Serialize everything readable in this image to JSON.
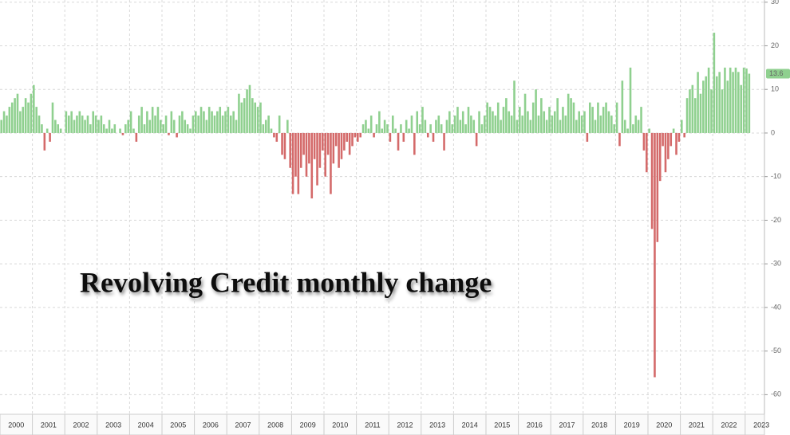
{
  "chart_data": {
    "type": "bar",
    "title": "Revolving Credit monthly change",
    "categories": [
      "2000",
      null,
      null,
      null,
      null,
      null,
      null,
      null,
      null,
      null,
      null,
      null,
      "2001",
      null,
      null,
      null,
      null,
      null,
      null,
      null,
      null,
      null,
      null,
      null,
      "2002",
      null,
      null,
      null,
      null,
      null,
      null,
      null,
      null,
      null,
      null,
      null,
      "2003",
      null,
      null,
      null,
      null,
      null,
      null,
      null,
      null,
      null,
      null,
      null,
      "2004",
      null,
      null,
      null,
      null,
      null,
      null,
      null,
      null,
      null,
      null,
      null,
      "2005",
      null,
      null,
      null,
      null,
      null,
      null,
      null,
      null,
      null,
      null,
      null,
      "2006",
      null,
      null,
      null,
      null,
      null,
      null,
      null,
      null,
      null,
      null,
      null,
      "2007",
      null,
      null,
      null,
      null,
      null,
      null,
      null,
      null,
      null,
      null,
      null,
      "2008",
      null,
      null,
      null,
      null,
      null,
      null,
      null,
      null,
      null,
      null,
      null,
      "2009",
      null,
      null,
      null,
      null,
      null,
      null,
      null,
      null,
      null,
      null,
      null,
      "2010",
      null,
      null,
      null,
      null,
      null,
      null,
      null,
      null,
      null,
      null,
      null,
      "2011",
      null,
      null,
      null,
      null,
      null,
      null,
      null,
      null,
      null,
      null,
      null,
      "2012",
      null,
      null,
      null,
      null,
      null,
      null,
      null,
      null,
      null,
      null,
      null,
      "2013",
      null,
      null,
      null,
      null,
      null,
      null,
      null,
      null,
      null,
      null,
      null,
      "2014",
      null,
      null,
      null,
      null,
      null,
      null,
      null,
      null,
      null,
      null,
      null,
      "2015",
      null,
      null,
      null,
      null,
      null,
      null,
      null,
      null,
      null,
      null,
      null,
      "2016",
      null,
      null,
      null,
      null,
      null,
      null,
      null,
      null,
      null,
      null,
      null,
      "2017",
      null,
      null,
      null,
      null,
      null,
      null,
      null,
      null,
      null,
      null,
      null,
      "2018",
      null,
      null,
      null,
      null,
      null,
      null,
      null,
      null,
      null,
      null,
      null,
      "2019",
      null,
      null,
      null,
      null,
      null,
      null,
      null,
      null,
      null,
      null,
      null,
      "2020",
      null,
      null,
      null,
      null,
      null,
      null,
      null,
      null,
      null,
      null,
      null,
      "2021",
      null,
      null,
      null,
      null,
      null,
      null,
      null,
      null,
      null,
      null,
      null,
      "2022",
      null,
      null,
      null,
      null,
      null,
      null,
      null,
      null,
      null,
      null,
      null,
      "2023",
      null
    ],
    "values": [
      3,
      5,
      4,
      6,
      7,
      8,
      9,
      5,
      6,
      8,
      7,
      9,
      11,
      6,
      4,
      2,
      -4,
      1,
      -2,
      7,
      3,
      2,
      1,
      0,
      5,
      4,
      5,
      3,
      4,
      5,
      4,
      3,
      4,
      2,
      5,
      4,
      3,
      4,
      2,
      1,
      3,
      1,
      2,
      0,
      1,
      -0.5,
      2,
      3,
      5,
      1,
      -2,
      4,
      6,
      2,
      5,
      3,
      6,
      4,
      6,
      3,
      2,
      4,
      -0.5,
      5,
      3,
      -1,
      4,
      5,
      3,
      2,
      1,
      4,
      5,
      4,
      6,
      5,
      3,
      6,
      5,
      4,
      5,
      6,
      4,
      5,
      6,
      4,
      5,
      3,
      9,
      7,
      8,
      10,
      11,
      8,
      7,
      6,
      7,
      2,
      3,
      4,
      1,
      -1,
      -2,
      4,
      -5,
      -6,
      3,
      -8,
      -14,
      -10,
      -14,
      -8,
      -5,
      -10,
      -7,
      -15,
      -6,
      -12,
      -8,
      -4,
      -10,
      -5,
      -14,
      -7,
      -3,
      -8,
      -6,
      -4,
      -2,
      -5,
      -3,
      -1,
      -2,
      -1,
      2,
      3,
      1,
      4,
      -1,
      2,
      5,
      1,
      3,
      2,
      -2,
      4,
      1,
      -4,
      2,
      -2,
      3,
      1,
      4,
      -5,
      5,
      2,
      6,
      3,
      -1,
      2,
      -2,
      3,
      4,
      2,
      -4,
      3,
      5,
      2,
      4,
      6,
      3,
      5,
      2,
      6,
      4,
      3,
      -3,
      5,
      2,
      4,
      7,
      6,
      5,
      4,
      7,
      3,
      6,
      8,
      5,
      4,
      12,
      3,
      6,
      4,
      9,
      5,
      3,
      7,
      10,
      4,
      8,
      5,
      3,
      6,
      4,
      5,
      8,
      3,
      6,
      4,
      9,
      8,
      7,
      3,
      5,
      4,
      5,
      -2,
      7,
      6,
      3,
      7,
      4,
      6,
      7,
      5,
      4,
      2,
      7,
      -3,
      12,
      3,
      1,
      15,
      2,
      4,
      3,
      6,
      -4,
      -9,
      1,
      -22,
      -56,
      -25,
      -11,
      -3,
      -9,
      -6,
      -3,
      1,
      -5,
      -2,
      3,
      -1,
      8,
      10,
      11,
      8,
      14,
      9,
      12,
      13,
      15,
      10,
      23,
      13,
      14,
      10,
      15,
      12,
      15,
      14,
      15,
      14,
      11,
      15,
      14.8,
      13.6
    ],
    "positive_color": "#8fd08f",
    "negative_color": "#d46a6a",
    "ylim": [
      -64.5,
      30.5
    ],
    "yticks": [
      30,
      20,
      10,
      0,
      -10,
      -20,
      -30,
      -40,
      -50,
      -60
    ],
    "grid": true
  }
}
